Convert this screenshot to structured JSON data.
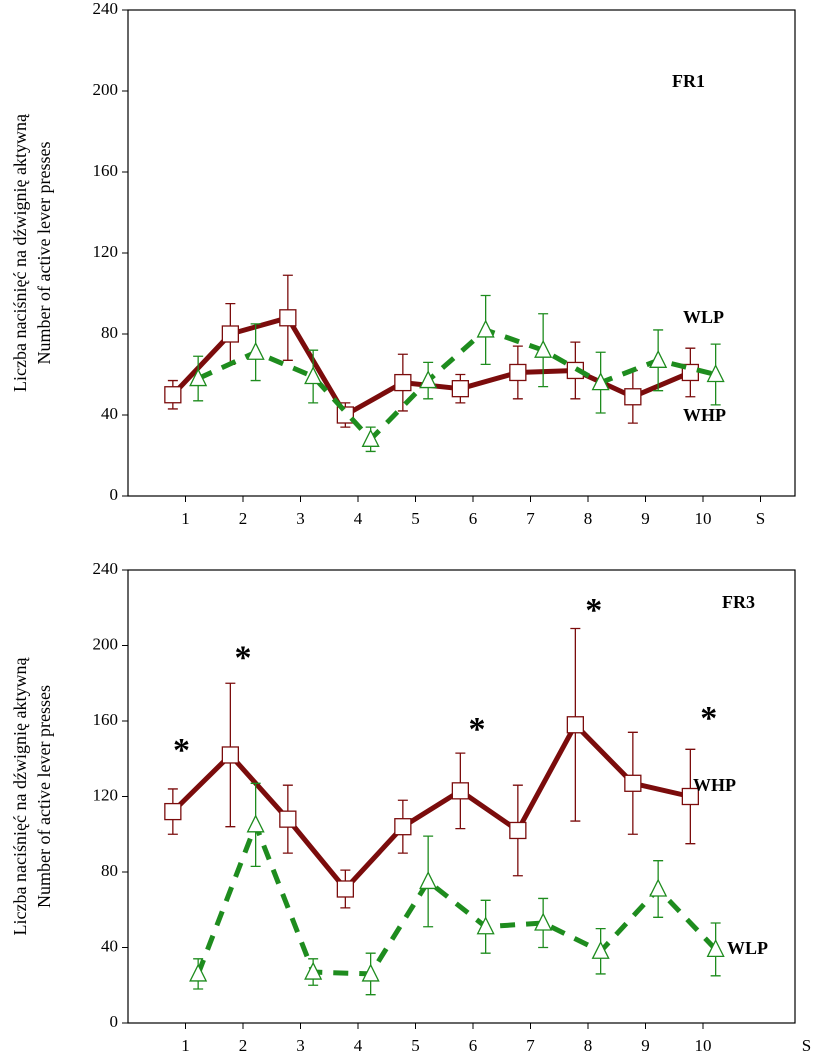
{
  "chart_data": [
    {
      "type": "line",
      "title": "FR1",
      "y_label": [
        "Liczba naciśnięć na dźwignię aktywną",
        "Number of active lever presses"
      ],
      "xlim": [
        0,
        11.6
      ],
      "xticks": [
        1,
        2,
        3,
        4,
        5,
        6,
        7,
        8,
        9,
        10,
        {
          "value": 11,
          "label": "S"
        }
      ],
      "ylim": [
        0,
        240
      ],
      "yticks": [
        0,
        40,
        80,
        120,
        160,
        200,
        240
      ],
      "series": [
        {
          "name": "WHP",
          "color": "#7b0c0c",
          "marker": "square",
          "dashed": false,
          "x": [
            0.78,
            1.78,
            2.78,
            3.78,
            4.78,
            5.78,
            6.78,
            7.78,
            8.78,
            9.78
          ],
          "values": [
            50,
            80,
            88,
            40,
            56,
            53,
            61,
            62,
            49,
            61
          ],
          "errors": [
            7,
            15,
            21,
            6,
            14,
            7,
            13,
            14,
            13,
            12
          ]
        },
        {
          "name": "WLP",
          "color": "#1e8c1e",
          "marker": "triangle",
          "dashed": true,
          "x": [
            1.22,
            2.22,
            3.22,
            4.22,
            5.22,
            6.22,
            7.22,
            8.22,
            9.22,
            10.22
          ],
          "values": [
            58,
            71,
            59,
            28,
            57,
            82,
            72,
            56,
            67,
            60
          ],
          "errors": [
            11,
            14,
            13,
            6,
            9,
            17,
            18,
            15,
            15,
            15
          ]
        }
      ],
      "annotations": []
    },
    {
      "type": "line",
      "title": "FR3",
      "y_label": [
        "Liczba naciśnięć na dźwignię aktywną",
        "Number of active lever presses"
      ],
      "xlim": [
        0,
        11.6
      ],
      "xticks": [
        1,
        2,
        3,
        4,
        5,
        6,
        7,
        8,
        9,
        10,
        {
          "value": 11.8,
          "label": "S"
        }
      ],
      "ylim": [
        0,
        240
      ],
      "yticks": [
        0,
        40,
        80,
        120,
        160,
        200,
        240
      ],
      "series": [
        {
          "name": "WHP",
          "color": "#7b0c0c",
          "marker": "square",
          "dashed": false,
          "x": [
            0.78,
            1.78,
            2.78,
            3.78,
            4.78,
            5.78,
            6.78,
            7.78,
            8.78,
            9.78
          ],
          "values": [
            112,
            142,
            108,
            71,
            104,
            123,
            102,
            158,
            127,
            120
          ],
          "errors": [
            12,
            38,
            18,
            10,
            14,
            20,
            24,
            51,
            27,
            25
          ]
        },
        {
          "name": "WLP",
          "color": "#1e8c1e",
          "marker": "triangle",
          "dashed": true,
          "x": [
            1.22,
            2.22,
            3.22,
            4.22,
            5.22,
            6.22,
            7.22,
            8.22,
            9.22,
            10.22
          ],
          "values": [
            26,
            105,
            27,
            26,
            75,
            51,
            53,
            38,
            71,
            39
          ],
          "errors": [
            8,
            22,
            7,
            11,
            24,
            14,
            13,
            12,
            15,
            14
          ]
        }
      ],
      "annotations": [
        {
          "text": "*",
          "x": 0.93,
          "y": 143
        },
        {
          "text": "*",
          "x": 2.0,
          "y": 192
        },
        {
          "text": "*",
          "x": 6.07,
          "y": 154
        },
        {
          "text": "*",
          "x": 8.1,
          "y": 217
        },
        {
          "text": "*",
          "x": 10.1,
          "y": 160
        }
      ]
    }
  ]
}
